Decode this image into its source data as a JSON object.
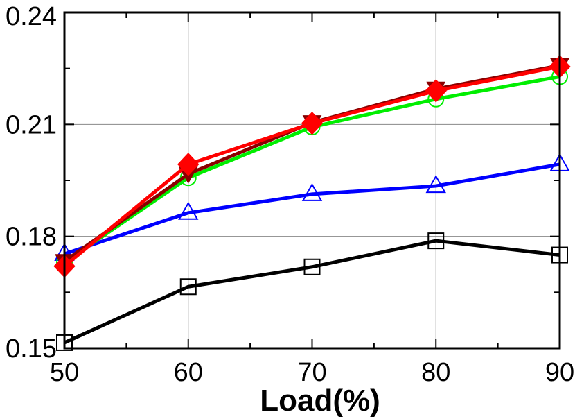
{
  "chart_data": {
    "type": "line",
    "title": "",
    "xlabel": "Load(%)",
    "ylabel": "",
    "x": [
      50,
      60,
      70,
      80,
      90
    ],
    "xlim": [
      50,
      90
    ],
    "ylim": [
      0.15,
      0.24
    ],
    "x_ticks": [
      "50",
      "60",
      "70",
      "80",
      "90"
    ],
    "y_ticks": [
      "0.15",
      "0.18",
      "0.21",
      "0.24"
    ],
    "grid": true,
    "series": [
      {
        "color": "#000000",
        "marker": "square",
        "values": [
          0.1515,
          0.1665,
          0.1718,
          0.1788,
          0.175
        ]
      },
      {
        "color": "#0000ff",
        "marker": "triangle",
        "values": [
          0.1753,
          0.1863,
          0.1913,
          0.1935,
          0.1993
        ]
      },
      {
        "color": "#00ee00",
        "marker": "circle",
        "values": [
          0.173,
          0.1957,
          0.2093,
          0.2168,
          0.2228
        ]
      },
      {
        "color": "#8b0000",
        "marker": "triangle-down",
        "values": [
          0.1733,
          0.1967,
          0.2105,
          0.2195,
          0.2258
        ]
      },
      {
        "color": "#ff0000",
        "marker": "diamond",
        "values": [
          0.172,
          0.1993,
          0.2103,
          0.219,
          0.2255
        ]
      }
    ]
  }
}
